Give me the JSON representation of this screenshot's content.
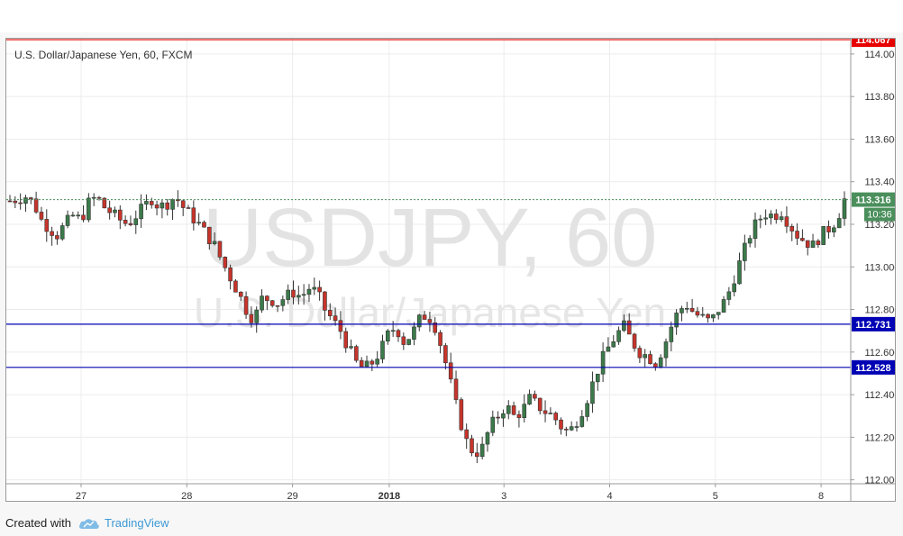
{
  "footer": {
    "created_with": "Created with",
    "brand": "TradingView"
  },
  "colors": {
    "up_candle": "#3b7a4a",
    "down_candle": "#c8342b",
    "resistance_line": "#e60000",
    "support_line": "#0000b4",
    "last_price_label": "#4a8f5c",
    "watermark": "#e3e3e3"
  },
  "chart_data": {
    "type": "candlestick",
    "title": "U.S. Dollar/Japanese Yen, 60, FXCM",
    "watermark_main": "USDJPY, 60",
    "watermark_sub": "U.S. Dollar/Japanese Yen",
    "x_ticks": [
      "27",
      "28",
      "29",
      "2018",
      "3",
      "4",
      "5",
      "8"
    ],
    "y_ticks": [
      "112.000",
      "112.200",
      "112.400",
      "112.600",
      "112.800",
      "113.000",
      "113.200",
      "113.400",
      "113.600",
      "113.800",
      "114.000"
    ],
    "ylim": [
      111.99,
      114.08
    ],
    "grid": true,
    "horizontal_levels": [
      {
        "value": 114.067,
        "label": "114.067",
        "color": "#e60000"
      },
      {
        "value": 112.731,
        "label": "112.731",
        "color": "#0000b4"
      },
      {
        "value": 112.528,
        "label": "112.528",
        "color": "#0000b4"
      }
    ],
    "last_price": {
      "value": 113.316,
      "label": "113.316",
      "countdown": "10:36"
    },
    "close_path": [
      113.31,
      113.32,
      113.33,
      113.3,
      113.22,
      113.18,
      113.15,
      113.2,
      113.24,
      113.22,
      113.3,
      113.33,
      113.28,
      113.25,
      113.22,
      113.2,
      113.24,
      113.28,
      113.32,
      113.28,
      113.3,
      113.33,
      113.28,
      113.24,
      113.2,
      113.15,
      113.1,
      113.02,
      112.95,
      112.88,
      112.8,
      112.75,
      112.85,
      112.85,
      112.83,
      112.86,
      112.88,
      112.86,
      112.9,
      112.88,
      112.8,
      112.75,
      112.7,
      112.62,
      112.55,
      112.52,
      112.55,
      112.6,
      112.68,
      112.72,
      112.65,
      112.68,
      112.75,
      112.78,
      112.72,
      112.6,
      112.45,
      112.3,
      112.18,
      112.12,
      112.15,
      112.25,
      112.3,
      112.35,
      112.3,
      112.32,
      112.38,
      112.35,
      112.32,
      112.3,
      112.25,
      112.22,
      112.28,
      112.35,
      112.45,
      112.55,
      112.62,
      112.68,
      112.72,
      112.65,
      112.6,
      112.58,
      112.55,
      112.62,
      112.72,
      112.8,
      112.82,
      112.78,
      112.76,
      112.74,
      112.8,
      112.85,
      112.95,
      113.05,
      113.15,
      113.22,
      113.25,
      113.24,
      113.26,
      113.2,
      113.15,
      113.12,
      113.1,
      113.15,
      113.18,
      113.22,
      113.316
    ]
  }
}
